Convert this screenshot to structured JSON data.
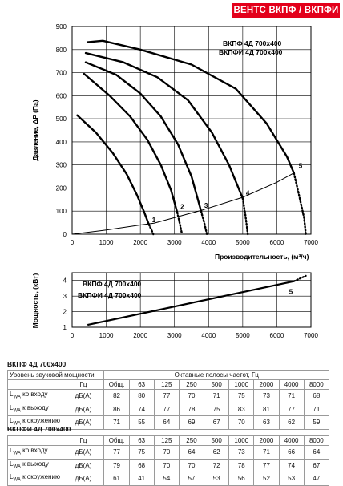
{
  "header": {
    "title": "ВЕНТС ВКПФ / ВКПФИ"
  },
  "chart_data": [
    {
      "type": "line",
      "ylabel": "Давление, ΔP (Па)",
      "xlabel": "Производительность, (м³/ч)",
      "xlim": [
        0,
        7000
      ],
      "ylim": [
        0,
        900
      ],
      "x_ticks": [
        "0",
        "1000",
        "2000",
        "3000",
        "4000",
        "5000",
        "6000",
        "7000"
      ],
      "y_ticks": [
        "0",
        "100",
        "200",
        "300",
        "400",
        "500",
        "600",
        "700",
        "800",
        "900"
      ],
      "grid": true,
      "legend_text": [
        "ВКПФ  4Д 700х400",
        "ВКПФИ  4Д 700х400"
      ],
      "series": [
        {
          "name": "1",
          "points": [
            [
              150,
              515
            ],
            [
              700,
              440
            ],
            [
              1200,
              350
            ],
            [
              1600,
              260
            ],
            [
              1900,
              170
            ],
            [
              2100,
              100
            ],
            [
              2250,
              42
            ]
          ],
          "dotted_end": [
            [
              2250,
              42
            ],
            [
              2320,
              20
            ],
            [
              2380,
              0
            ]
          ]
        },
        {
          "name": "2",
          "points": [
            [
              350,
              695
            ],
            [
              1100,
              600
            ],
            [
              1700,
              510
            ],
            [
              2200,
              410
            ],
            [
              2600,
              300
            ],
            [
              2900,
              190
            ],
            [
              3080,
              95
            ]
          ],
          "dotted_end": [
            [
              3080,
              95
            ],
            [
              3150,
              50
            ],
            [
              3220,
              0
            ]
          ]
        },
        {
          "name": "3",
          "points": [
            [
              400,
              745
            ],
            [
              1300,
              690
            ],
            [
              2000,
              610
            ],
            [
              2600,
              510
            ],
            [
              3100,
              390
            ],
            [
              3500,
              250
            ],
            [
              3780,
              100
            ]
          ],
          "dotted_end": [
            [
              3780,
              100
            ],
            [
              3870,
              50
            ],
            [
              3950,
              0
            ]
          ]
        },
        {
          "name": "4",
          "points": [
            [
              400,
              785
            ],
            [
              1500,
              745
            ],
            [
              2500,
              680
            ],
            [
              3400,
              580
            ],
            [
              4100,
              440
            ],
            [
              4600,
              300
            ],
            [
              5000,
              155
            ]
          ],
          "dotted_end": [
            [
              5000,
              155
            ],
            [
              5080,
              80
            ],
            [
              5150,
              0
            ]
          ]
        },
        {
          "name": "5",
          "points": [
            [
              450,
              832
            ],
            [
              900,
              838
            ],
            [
              2000,
              800
            ],
            [
              3500,
              735
            ],
            [
              4800,
              630
            ],
            [
              5700,
              480
            ],
            [
              6300,
              335
            ],
            [
              6500,
              265
            ]
          ],
          "dotted_end": [
            [
              6500,
              265
            ],
            [
              6650,
              170
            ],
            [
              6800,
              70
            ],
            [
              6850,
              0
            ]
          ]
        }
      ],
      "system_curve": [
        [
          0,
          0
        ],
        [
          1000,
          18
        ],
        [
          2000,
          40
        ],
        [
          2400,
          48
        ],
        [
          3200,
          80
        ],
        [
          3800,
          104
        ],
        [
          5000,
          160
        ],
        [
          6000,
          225
        ],
        [
          6500,
          265
        ]
      ],
      "curve_labels": [
        "1",
        "2",
        "3",
        "4",
        "5"
      ]
    },
    {
      "type": "line",
      "ylabel": "Мощность, (кВт)",
      "xlim": [
        0,
        7000
      ],
      "ylim": [
        1,
        4.5
      ],
      "x_ticks": [
        "0",
        "1000",
        "2000",
        "3000",
        "4000",
        "5000",
        "6000",
        "7000"
      ],
      "y_ticks": [
        "1",
        "2",
        "3",
        "4"
      ],
      "grid": true,
      "legend_text": [
        "ВКПФ  4Д 700х400",
        "ВКПФИ  4Д 700х400"
      ],
      "series": [
        {
          "name": "5",
          "points": [
            [
              450,
              1.15
            ],
            [
              6500,
              3.95
            ]
          ],
          "dotted_end": [
            [
              6500,
              3.95
            ],
            [
              6850,
              4.3
            ]
          ]
        }
      ],
      "curve_labels": [
        "5"
      ]
    }
  ],
  "tables": [
    {
      "title": "ВКПФ 4Д 700х400",
      "caption_left": "Уровень звуковой мощности",
      "caption_right": "Октавные полосы частот, Гц",
      "header": [
        "Гц",
        "Общ.",
        "63",
        "125",
        "250",
        "500",
        "1000",
        "2000",
        "4000",
        "8000"
      ],
      "rows": [
        {
          "label_main": "L",
          "label_sub": "WA",
          "label_rest": " ко входу",
          "unit": "дБ(А)",
          "values": [
            "82",
            "80",
            "77",
            "70",
            "71",
            "75",
            "73",
            "71",
            "68"
          ]
        },
        {
          "label_main": "L",
          "label_sub": "WA",
          "label_rest": " к выходу",
          "unit": "дБ(А)",
          "values": [
            "86",
            "74",
            "77",
            "78",
            "75",
            "83",
            "81",
            "77",
            "71"
          ]
        },
        {
          "label_main": "L",
          "label_sub": "WA",
          "label_rest": " к окружению",
          "unit": "дБ(А)",
          "values": [
            "71",
            "55",
            "64",
            "69",
            "67",
            "70",
            "63",
            "62",
            "59"
          ]
        }
      ]
    },
    {
      "title": "ВКПФИ 4Д 700х400",
      "header": [
        "Гц",
        "Общ.",
        "63",
        "125",
        "250",
        "500",
        "1000",
        "2000",
        "4000",
        "8000"
      ],
      "rows": [
        {
          "label_main": "L",
          "label_sub": "WA",
          "label_rest": " ко входу",
          "unit": "дБ(А)",
          "values": [
            "77",
            "75",
            "70",
            "64",
            "62",
            "73",
            "71",
            "66",
            "64"
          ]
        },
        {
          "label_main": "L",
          "label_sub": "WA",
          "label_rest": " к выходу",
          "unit": "дБ(А)",
          "values": [
            "79",
            "68",
            "70",
            "70",
            "72",
            "78",
            "77",
            "74",
            "67"
          ]
        },
        {
          "label_main": "L",
          "label_sub": "WA",
          "label_rest": " к окружению",
          "unit": "дБ(А)",
          "values": [
            "61",
            "41",
            "54",
            "57",
            "53",
            "56",
            "52",
            "53",
            "47"
          ]
        }
      ]
    }
  ]
}
